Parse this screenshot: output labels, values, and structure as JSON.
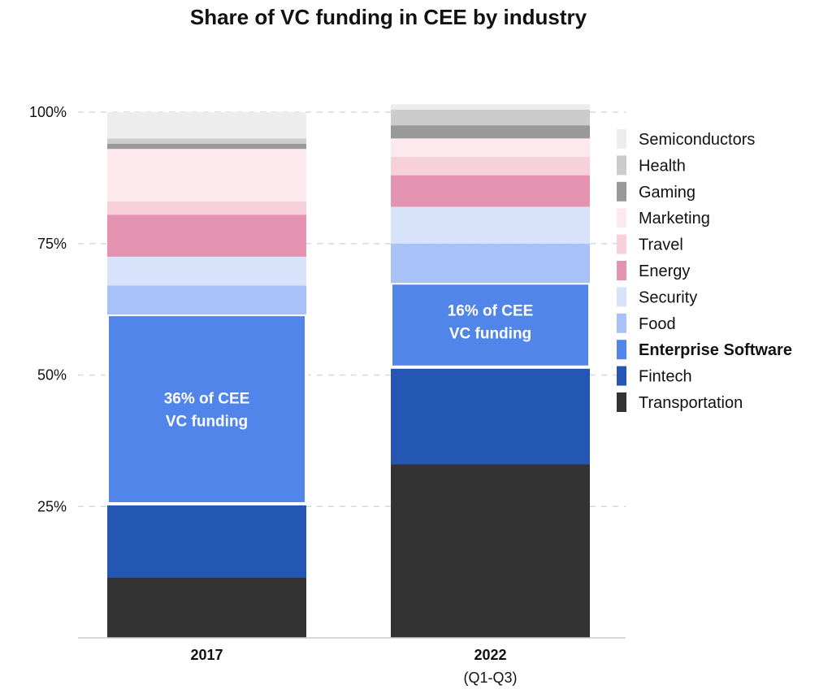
{
  "chart_data": {
    "type": "bar",
    "stacked": true,
    "title": "Share of VC funding in CEE by industry",
    "categories": [
      "2017",
      "2022"
    ],
    "category_subtitles": [
      "",
      "(Q1-Q3)"
    ],
    "ylim": [
      0,
      100
    ],
    "yticks": [
      {
        "value": 25,
        "label": "25%"
      },
      {
        "value": 50,
        "label": "50%"
      },
      {
        "value": 75,
        "label": "75%"
      },
      {
        "value": 100,
        "label": "100%"
      }
    ],
    "grid": true,
    "legend_position": "right",
    "series": [
      {
        "name": "Transportation",
        "color": "#333333",
        "values": [
          11.5,
          33.0
        ]
      },
      {
        "name": "Fintech",
        "color": "#2456b3",
        "values": [
          14.0,
          18.5
        ]
      },
      {
        "name": "Enterprise Software",
        "color": "#5285ea",
        "values": [
          36.0,
          16.0
        ],
        "highlight": true
      },
      {
        "name": "Food",
        "color": "#a8c1f7",
        "values": [
          5.5,
          7.5
        ]
      },
      {
        "name": "Security",
        "color": "#d8e3fb",
        "values": [
          5.5,
          7.0
        ]
      },
      {
        "name": "Energy",
        "color": "#e494b0",
        "values": [
          8.0,
          6.0
        ]
      },
      {
        "name": "Travel",
        "color": "#f7d0da",
        "values": [
          2.5,
          3.5
        ]
      },
      {
        "name": "Marketing",
        "color": "#fbe9ee",
        "values": [
          10.0,
          3.5
        ]
      },
      {
        "name": "Gaming",
        "color": "#999999",
        "values": [
          1.0,
          2.5
        ]
      },
      {
        "name": "Health",
        "color": "#cccccc",
        "values": [
          1.0,
          3.0
        ]
      },
      {
        "name": "Semiconductors",
        "color": "#ededed",
        "values": [
          5.0,
          1.0
        ]
      }
    ],
    "annotations": [
      {
        "category": "2017",
        "series": "Enterprise Software",
        "lines": [
          "36% of CEE",
          "VC funding"
        ],
        "position": "middle"
      },
      {
        "category": "2022",
        "series": "Enterprise Software",
        "lines": [
          "16% of CEE",
          "VC funding"
        ],
        "position": "top"
      }
    ]
  }
}
